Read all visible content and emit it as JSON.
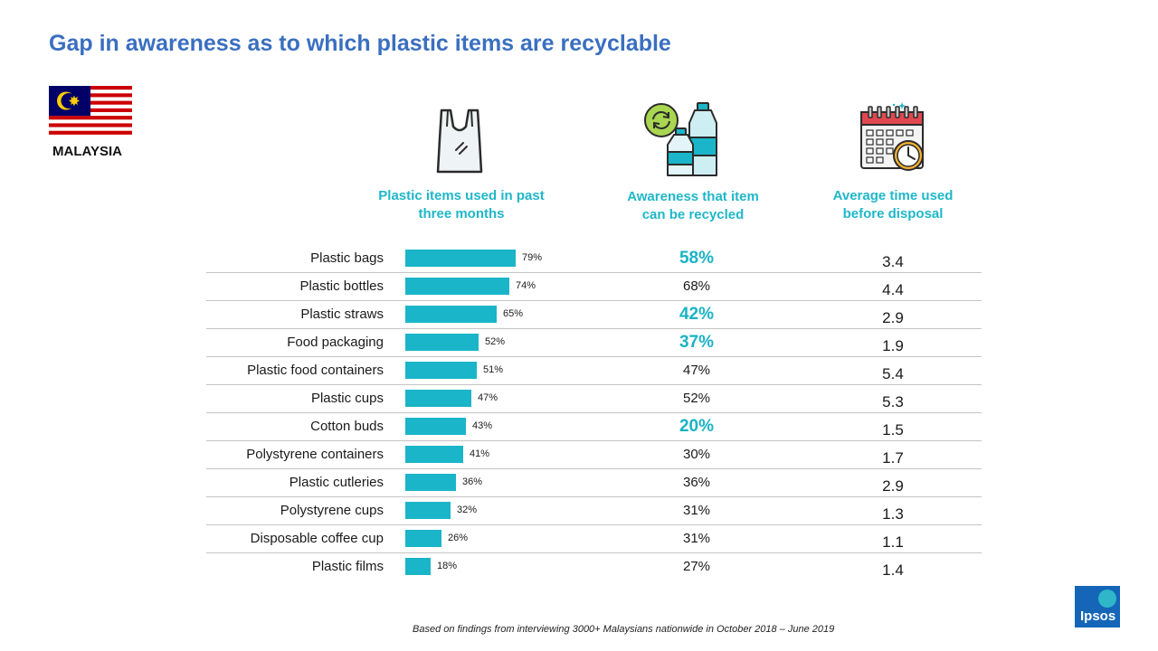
{
  "title": "Gap in awareness as to which plastic items are recyclable",
  "country": "MALAYSIA",
  "footnote": "Based on findings from interviewing 3000+  Malaysians nationwide in October 2018 – June 2019",
  "logo": "Ipsos",
  "colors": {
    "title": "#3a6fc0",
    "accent": "#1ab5c8",
    "logo": "#1566b8"
  },
  "columns": {
    "used": {
      "header_line1": "Plastic items used in past",
      "header_line2": "three months",
      "icon": "plastic-bag-icon"
    },
    "awareness": {
      "header_line1": "Awareness that item",
      "header_line2": "can be recycled",
      "icon": "recycle-bottles-icon"
    },
    "avg_time": {
      "header_line1": "Average time used",
      "header_line2": "before disposal",
      "icon": "calendar-clock-icon"
    }
  },
  "chart_data": {
    "type": "bar",
    "orientation": "horizontal",
    "categories": [
      "Plastic bags",
      "Plastic bottles",
      "Plastic straws",
      "Food packaging",
      "Plastic food containers",
      "Plastic cups",
      "Cotton buds",
      "Polystyrene containers",
      "Plastic cutleries",
      "Polystyrene cups",
      "Disposable coffee cup",
      "Plastic films"
    ],
    "values": [
      79,
      74,
      65,
      52,
      51,
      47,
      43,
      41,
      36,
      32,
      26,
      18
    ],
    "value_labels": [
      "79%",
      "74%",
      "65%",
      "52%",
      "51%",
      "47%",
      "43%",
      "41%",
      "36%",
      "32%",
      "26%",
      "18%"
    ],
    "xlim": [
      0,
      100
    ],
    "grid": false
  },
  "rows": [
    {
      "awareness": "58%",
      "highlight": true,
      "avg": "3.4"
    },
    {
      "awareness": "68%",
      "highlight": false,
      "avg": "4.4"
    },
    {
      "awareness": "42%",
      "highlight": true,
      "avg": "2.9"
    },
    {
      "awareness": "37%",
      "highlight": true,
      "avg": "1.9"
    },
    {
      "awareness": "47%",
      "highlight": false,
      "avg": "5.4"
    },
    {
      "awareness": "52%",
      "highlight": false,
      "avg": "5.3"
    },
    {
      "awareness": "20%",
      "highlight": true,
      "avg": "1.5"
    },
    {
      "awareness": "30%",
      "highlight": false,
      "avg": "1.7"
    },
    {
      "awareness": "36%",
      "highlight": false,
      "avg": "2.9"
    },
    {
      "awareness": "31%",
      "highlight": false,
      "avg": "1.3"
    },
    {
      "awareness": "31%",
      "highlight": false,
      "avg": "1.1"
    },
    {
      "awareness": "27%",
      "highlight": false,
      "avg": "1.4"
    }
  ]
}
